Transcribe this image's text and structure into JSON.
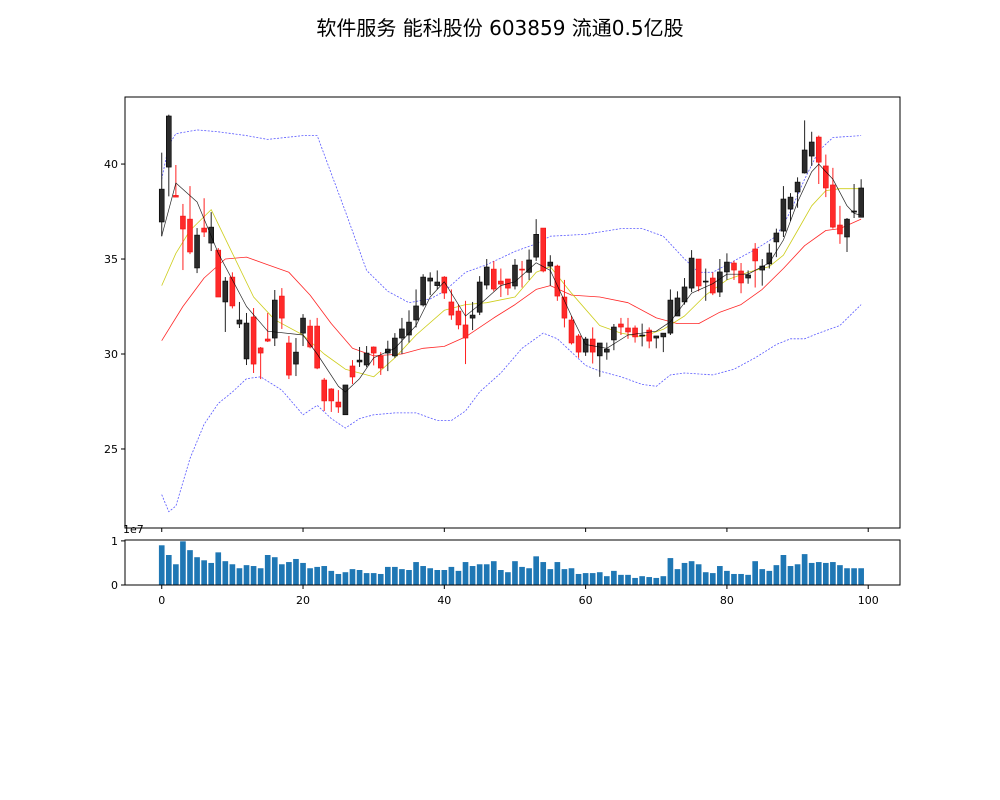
{
  "chart_data": {
    "type": "candlestick",
    "title": "软件服务 能科股份 603859 流通0.5亿股",
    "x_ticks": [
      0,
      20,
      40,
      60,
      80,
      100
    ],
    "x_range": [
      -5.2,
      104.5
    ],
    "price_ticks": [
      25,
      30,
      35,
      40
    ],
    "price_range": [
      20.84,
      43.53
    ],
    "volume_ticks": [
      0,
      1
    ],
    "volume_range": [
      0,
      1.02
    ],
    "volume_scale_label": "1e7",
    "colors": {
      "up": "#2b2b2b",
      "down": "#ff2a2a",
      "ma_black": "#000000",
      "ma_yellow": "#c8c800",
      "ma_red": "#ff0000",
      "boll": "#3030ff",
      "volume": "#1f77b4"
    },
    "ohlc_order": [
      "open",
      "high",
      "low",
      "close"
    ],
    "ohlc": [
      [
        36.95,
        40.6,
        36.2,
        38.68
      ],
      [
        39.84,
        42.6,
        38.3,
        42.53
      ],
      [
        38.35,
        39.95,
        38.26,
        38.26
      ],
      [
        37.26,
        37.9,
        34.42,
        36.58
      ],
      [
        37.1,
        38.84,
        35.26,
        35.37
      ],
      [
        34.53,
        36.63,
        34.26,
        36.26
      ],
      [
        36.63,
        38.2,
        36.16,
        36.42
      ],
      [
        35.84,
        37.47,
        35.42,
        36.68
      ],
      [
        35.47,
        35.58,
        33.0,
        33.0
      ],
      [
        32.74,
        34.05,
        31.16,
        33.84
      ],
      [
        34.05,
        34.3,
        32.4,
        32.53
      ],
      [
        31.58,
        32.74,
        31.37,
        31.79
      ],
      [
        29.74,
        32.16,
        29.42,
        31.63
      ],
      [
        31.95,
        32.42,
        29.0,
        29.47
      ],
      [
        30.32,
        30.37,
        28.68,
        30.05
      ],
      [
        30.79,
        32.16,
        30.63,
        30.68
      ],
      [
        30.84,
        33.37,
        30.42,
        32.84
      ],
      [
        33.05,
        33.47,
        31.32,
        31.89
      ],
      [
        30.58,
        30.95,
        28.68,
        28.89
      ],
      [
        29.47,
        30.84,
        28.84,
        30.1
      ],
      [
        31.1,
        32.1,
        30.42,
        31.89
      ],
      [
        31.47,
        31.8,
        30.3,
        30.37
      ],
      [
        31.47,
        31.9,
        29.2,
        29.26
      ],
      [
        28.63,
        28.74,
        27.0,
        27.53
      ],
      [
        28.16,
        28.2,
        26.95,
        27.53
      ],
      [
        27.47,
        28.1,
        26.9,
        27.21
      ],
      [
        26.8,
        28.37,
        26.8,
        28.37
      ],
      [
        29.37,
        29.68,
        28.42,
        28.79
      ],
      [
        29.58,
        30.37,
        29.32,
        29.68
      ],
      [
        29.42,
        30.42,
        29.3,
        30.05
      ],
      [
        30.37,
        30.4,
        29.4,
        30.05
      ],
      [
        29.89,
        30.1,
        28.9,
        29.26
      ],
      [
        30.05,
        30.7,
        29.1,
        30.26
      ],
      [
        29.9,
        31.1,
        29.8,
        30.84
      ],
      [
        30.84,
        31.9,
        30.0,
        31.32
      ],
      [
        31.0,
        32.3,
        30.6,
        31.68
      ],
      [
        31.79,
        33.4,
        31.4,
        32.53
      ],
      [
        32.58,
        34.2,
        32.5,
        34.05
      ],
      [
        33.84,
        34.3,
        33.1,
        34.0
      ],
      [
        33.6,
        34.4,
        33.4,
        33.79
      ],
      [
        34.05,
        34.1,
        32.9,
        33.21
      ],
      [
        32.74,
        33.4,
        31.8,
        32.05
      ],
      [
        32.26,
        32.6,
        31.3,
        31.53
      ],
      [
        31.53,
        32.8,
        29.47,
        30.84
      ],
      [
        31.89,
        32.74,
        31.26,
        32.05
      ],
      [
        32.2,
        34.1,
        32.05,
        33.79
      ],
      [
        33.63,
        35.0,
        33.4,
        34.58
      ],
      [
        34.47,
        34.9,
        33.3,
        33.42
      ],
      [
        33.84,
        34.5,
        33.0,
        33.68
      ],
      [
        33.95,
        33.95,
        33.1,
        33.47
      ],
      [
        33.58,
        35.0,
        33.4,
        34.68
      ],
      [
        34.47,
        34.9,
        33.5,
        34.42
      ],
      [
        34.3,
        35.5,
        33.9,
        34.95
      ],
      [
        35.1,
        37.1,
        34.9,
        36.3
      ],
      [
        36.63,
        36.63,
        34.3,
        34.37
      ],
      [
        34.63,
        35.2,
        33.6,
        34.84
      ],
      [
        34.63,
        34.7,
        32.8,
        33.05
      ],
      [
        33.0,
        33.9,
        31.4,
        31.89
      ],
      [
        31.79,
        32.0,
        30.5,
        30.58
      ],
      [
        30.95,
        31.05,
        29.8,
        30.1
      ],
      [
        30.1,
        30.9,
        29.9,
        30.79
      ],
      [
        30.79,
        31.4,
        29.5,
        30.1
      ],
      [
        29.9,
        30.58,
        28.8,
        30.58
      ],
      [
        30.1,
        30.6,
        29.7,
        30.26
      ],
      [
        30.74,
        31.58,
        30.2,
        31.42
      ],
      [
        31.58,
        31.9,
        31.0,
        31.42
      ],
      [
        31.37,
        31.9,
        30.8,
        31.16
      ],
      [
        31.37,
        31.5,
        30.6,
        30.9
      ],
      [
        30.95,
        31.6,
        30.4,
        31.0
      ],
      [
        31.26,
        31.4,
        30.3,
        30.68
      ],
      [
        30.84,
        30.95,
        30.3,
        30.95
      ],
      [
        30.9,
        31.1,
        30.1,
        31.1
      ],
      [
        31.1,
        33.4,
        31.0,
        32.84
      ],
      [
        32.0,
        33.3,
        32.0,
        32.95
      ],
      [
        32.74,
        34.0,
        32.6,
        33.53
      ],
      [
        33.47,
        35.47,
        33.26,
        35.05
      ],
      [
        35.0,
        35.0,
        33.3,
        33.58
      ],
      [
        33.79,
        34.5,
        32.8,
        33.84
      ],
      [
        34.0,
        34.3,
        33.1,
        33.21
      ],
      [
        33.26,
        35.0,
        33.0,
        34.32
      ],
      [
        34.32,
        35.3,
        33.9,
        34.84
      ],
      [
        34.79,
        34.9,
        33.9,
        34.42
      ],
      [
        34.37,
        34.79,
        33.2,
        33.74
      ],
      [
        34.0,
        34.4,
        33.7,
        34.16
      ],
      [
        35.53,
        35.84,
        33.5,
        34.9
      ],
      [
        34.42,
        35.0,
        33.6,
        34.63
      ],
      [
        34.74,
        35.8,
        34.5,
        35.32
      ],
      [
        35.9,
        36.6,
        35.1,
        36.37
      ],
      [
        36.47,
        38.84,
        36.16,
        38.16
      ],
      [
        37.63,
        38.47,
        37.0,
        38.26
      ],
      [
        38.53,
        39.3,
        37.7,
        39.05
      ],
      [
        39.53,
        42.3,
        39.5,
        40.74
      ],
      [
        40.42,
        41.7,
        39.9,
        41.16
      ],
      [
        41.42,
        41.5,
        38.95,
        40.1
      ],
      [
        39.9,
        40.5,
        38.26,
        38.74
      ],
      [
        38.9,
        39.8,
        36.6,
        36.68
      ],
      [
        36.79,
        37.8,
        35.8,
        36.32
      ],
      [
        36.16,
        37.16,
        35.37,
        37.1
      ],
      [
        37.47,
        38.95,
        37.16,
        37.53
      ],
      [
        37.2,
        39.2,
        37.2,
        38.74
      ]
    ],
    "volume": [
      0.9,
      0.68,
      0.47,
      0.99,
      0.79,
      0.63,
      0.56,
      0.5,
      0.74,
      0.54,
      0.47,
      0.38,
      0.45,
      0.43,
      0.38,
      0.68,
      0.63,
      0.47,
      0.52,
      0.59,
      0.5,
      0.38,
      0.41,
      0.43,
      0.32,
      0.25,
      0.29,
      0.36,
      0.34,
      0.27,
      0.27,
      0.25,
      0.41,
      0.41,
      0.36,
      0.34,
      0.52,
      0.43,
      0.38,
      0.34,
      0.34,
      0.41,
      0.32,
      0.52,
      0.43,
      0.47,
      0.47,
      0.54,
      0.34,
      0.29,
      0.54,
      0.41,
      0.38,
      0.65,
      0.52,
      0.36,
      0.52,
      0.36,
      0.38,
      0.25,
      0.27,
      0.27,
      0.29,
      0.2,
      0.32,
      0.23,
      0.23,
      0.16,
      0.2,
      0.18,
      0.16,
      0.2,
      0.61,
      0.36,
      0.5,
      0.54,
      0.47,
      0.29,
      0.27,
      0.43,
      0.32,
      0.25,
      0.25,
      0.23,
      0.54,
      0.36,
      0.32,
      0.45,
      0.68,
      0.43,
      0.47,
      0.7,
      0.5,
      0.52,
      0.5,
      0.52,
      0.45,
      0.38,
      0.38,
      0.38
    ],
    "lines": {
      "ma_black": [
        [
          0,
          36.2
        ],
        [
          2,
          39
        ],
        [
          5,
          38
        ],
        [
          8,
          35.3
        ],
        [
          12,
          32.5
        ],
        [
          15,
          31.2
        ],
        [
          20,
          31
        ],
        [
          22,
          30
        ],
        [
          25,
          28.3
        ],
        [
          26,
          28
        ],
        [
          28,
          28.7
        ],
        [
          30,
          29.8
        ],
        [
          33,
          30.3
        ],
        [
          36,
          31.5
        ],
        [
          38,
          33
        ],
        [
          40,
          33.8
        ],
        [
          43,
          32
        ],
        [
          45,
          32.6
        ],
        [
          48,
          33.6
        ],
        [
          50,
          33.8
        ],
        [
          53,
          34.8
        ],
        [
          55,
          34.4
        ],
        [
          58,
          32
        ],
        [
          60,
          30.5
        ],
        [
          63,
          30.3
        ],
        [
          66,
          31
        ],
        [
          70,
          31.2
        ],
        [
          72,
          31.7
        ],
        [
          75,
          33.2
        ],
        [
          78,
          33.7
        ],
        [
          80,
          34.2
        ],
        [
          83,
          34.2
        ],
        [
          86,
          34.8
        ],
        [
          88,
          36
        ],
        [
          90,
          38
        ],
        [
          92,
          39.6
        ],
        [
          93,
          40
        ],
        [
          95,
          39.2
        ],
        [
          97,
          37.8
        ],
        [
          98,
          37.4
        ],
        [
          99,
          37.3
        ]
      ],
      "ma_yellow": [
        [
          0,
          33.6
        ],
        [
          2,
          35.3
        ],
        [
          4,
          36.5
        ],
        [
          7,
          37.6
        ],
        [
          10,
          35.3
        ],
        [
          13,
          33
        ],
        [
          16,
          31.8
        ],
        [
          20,
          31
        ],
        [
          23,
          30
        ],
        [
          26,
          29.2
        ],
        [
          30,
          28.8
        ],
        [
          33,
          29.8
        ],
        [
          36,
          31
        ],
        [
          40,
          32.3
        ],
        [
          43,
          32.6
        ],
        [
          46,
          32.7
        ],
        [
          50,
          33
        ],
        [
          53,
          34.3
        ],
        [
          55,
          34.6
        ],
        [
          58,
          33.2
        ],
        [
          62,
          31.5
        ],
        [
          65,
          31.1
        ],
        [
          68,
          30.9
        ],
        [
          71,
          31.3
        ],
        [
          74,
          32
        ],
        [
          77,
          33.1
        ],
        [
          80,
          33.9
        ],
        [
          83,
          34.3
        ],
        [
          86,
          34.6
        ],
        [
          88,
          35.2
        ],
        [
          90,
          36.5
        ],
        [
          92,
          37.8
        ],
        [
          94,
          38.6
        ],
        [
          96,
          38.7
        ],
        [
          99,
          38.7
        ]
      ],
      "ma_red": [
        [
          0,
          30.7
        ],
        [
          3,
          32.5
        ],
        [
          6,
          34
        ],
        [
          9,
          35
        ],
        [
          12,
          35.1
        ],
        [
          15,
          34.7
        ],
        [
          18,
          34.3
        ],
        [
          21,
          33.1
        ],
        [
          24,
          31.6
        ],
        [
          27,
          30.3
        ],
        [
          30,
          29.9
        ],
        [
          34,
          30
        ],
        [
          37,
          30.3
        ],
        [
          40,
          30.4
        ],
        [
          43,
          30.9
        ],
        [
          47,
          31.9
        ],
        [
          50,
          32.6
        ],
        [
          53,
          33.4
        ],
        [
          55,
          33.6
        ],
        [
          58,
          33.1
        ],
        [
          62,
          33
        ],
        [
          66,
          32.7
        ],
        [
          70,
          31.9
        ],
        [
          73,
          31.6
        ],
        [
          76,
          31.6
        ],
        [
          79,
          32.2
        ],
        [
          82,
          32.6
        ],
        [
          85,
          33.4
        ],
        [
          88,
          34.5
        ],
        [
          91,
          35.7
        ],
        [
          94,
          36.5
        ],
        [
          96,
          36.6
        ],
        [
          99,
          37.1
        ]
      ],
      "boll_upper": [
        [
          0,
          39.2
        ],
        [
          1,
          41
        ],
        [
          2,
          41.6
        ],
        [
          5,
          41.8
        ],
        [
          8,
          41.7
        ],
        [
          12,
          41.5
        ],
        [
          15,
          41.3
        ],
        [
          20,
          41.5
        ],
        [
          22,
          41.5
        ],
        [
          24,
          39.5
        ],
        [
          26,
          37.5
        ],
        [
          29,
          34.4
        ],
        [
          32,
          33.3
        ],
        [
          35,
          32.7
        ],
        [
          38,
          32.9
        ],
        [
          40,
          33.3
        ],
        [
          43,
          34.3
        ],
        [
          46,
          34.7
        ],
        [
          50,
          35.4
        ],
        [
          53,
          35.8
        ],
        [
          55,
          36.2
        ],
        [
          60,
          36.3
        ],
        [
          65,
          36.6
        ],
        [
          68,
          36.6
        ],
        [
          71,
          36.2
        ],
        [
          74,
          35.0
        ],
        [
          76,
          34.3
        ],
        [
          78,
          34.3
        ],
        [
          81,
          34.9
        ],
        [
          84,
          35.5
        ],
        [
          87,
          36.2
        ],
        [
          89,
          37.5
        ],
        [
          91,
          39.2
        ],
        [
          93,
          40.7
        ],
        [
          95,
          41.4
        ],
        [
          99,
          41.5
        ]
      ],
      "boll_lower": [
        [
          0,
          22.6
        ],
        [
          1,
          21.7
        ],
        [
          2,
          22.0
        ],
        [
          4,
          24.5
        ],
        [
          6,
          26.3
        ],
        [
          8,
          27.4
        ],
        [
          10,
          28.0
        ],
        [
          12,
          28.7
        ],
        [
          14,
          28.8
        ],
        [
          17,
          28.1
        ],
        [
          20,
          26.8
        ],
        [
          22,
          27.3
        ],
        [
          24,
          26.6
        ],
        [
          26,
          26.1
        ],
        [
          28,
          26.6
        ],
        [
          30,
          26.8
        ],
        [
          33,
          26.9
        ],
        [
          36,
          26.9
        ],
        [
          39,
          26.5
        ],
        [
          41,
          26.5
        ],
        [
          43,
          27.0
        ],
        [
          45,
          28.0
        ],
        [
          48,
          29.0
        ],
        [
          51,
          30.3
        ],
        [
          54,
          31.1
        ],
        [
          56,
          30.8
        ],
        [
          58,
          30.1
        ],
        [
          60,
          29.4
        ],
        [
          62,
          29.1
        ],
        [
          65,
          28.8
        ],
        [
          68,
          28.4
        ],
        [
          70,
          28.3
        ],
        [
          72,
          28.9
        ],
        [
          74,
          29.0
        ],
        [
          78,
          28.9
        ],
        [
          81,
          29.2
        ],
        [
          84,
          29.8
        ],
        [
          87,
          30.5
        ],
        [
          89,
          30.8
        ],
        [
          91,
          30.8
        ],
        [
          93,
          31.1
        ],
        [
          96,
          31.5
        ],
        [
          99,
          32.6
        ]
      ]
    }
  }
}
